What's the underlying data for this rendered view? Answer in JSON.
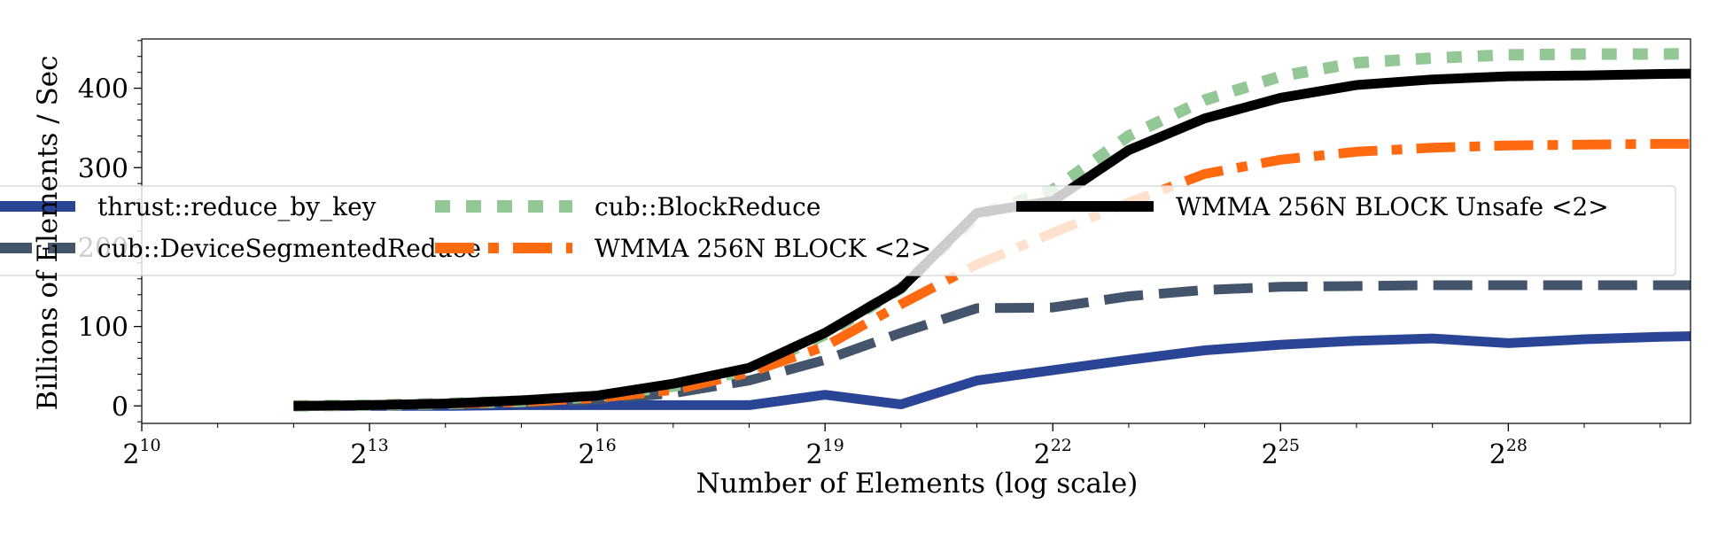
{
  "chart_data": {
    "type": "line",
    "xlabel": "Number of Elements (log scale)",
    "ylabel": "Billions of Elements / Sec",
    "x_scale": "log2",
    "x_unit": "log2 of number of elements",
    "xlim": [
      10,
      30.4
    ],
    "ylim": [
      -22,
      462
    ],
    "x_ticks": [
      10,
      13,
      16,
      19,
      22,
      25,
      28
    ],
    "x_tick_base": "2",
    "x_tick_exponents": [
      "10",
      "13",
      "16",
      "19",
      "22",
      "25",
      "28"
    ],
    "y_ticks": [
      0,
      100,
      200,
      300,
      400
    ],
    "y_tick_labels": [
      "0",
      "100",
      "200",
      "300",
      "400"
    ],
    "x": [
      12,
      13,
      14,
      15,
      16,
      17,
      18,
      19,
      20,
      21,
      22,
      23,
      24,
      25,
      26,
      27,
      28,
      29,
      30,
      31
    ],
    "grid": false,
    "legend": {
      "placement": "center",
      "columns": 3,
      "frame": true
    },
    "series": [
      {
        "name": "thrust::reduce_by_key",
        "color": "#2b4596",
        "style": "solid",
        "z": 1,
        "values": [
          0,
          0,
          0,
          1,
          1,
          1,
          1,
          14,
          2,
          32,
          45,
          58,
          70,
          77,
          82,
          85,
          79,
          84,
          87,
          89
        ]
      },
      {
        "name": "cub::DeviceSegmentedReduce",
        "color": "#44546a",
        "style": "dashed",
        "z": 2,
        "values": [
          0,
          1,
          2,
          4,
          8,
          16,
          32,
          58,
          92,
          123,
          124,
          138,
          146,
          150,
          151,
          152,
          152,
          152,
          152,
          152
        ]
      },
      {
        "name": "cub::BlockReduce",
        "color": "#93c796",
        "style": "dotted",
        "z": 3,
        "values": [
          0,
          1,
          3,
          6,
          12,
          25,
          45,
          90,
          148,
          240,
          272,
          340,
          385,
          415,
          432,
          438,
          442,
          443,
          443,
          444
        ]
      },
      {
        "name": "WMMA 256N BLOCK <2>",
        "color": "#ff6a10",
        "style": "dashdot",
        "z": 4,
        "values": [
          0,
          1,
          3,
          5,
          10,
          20,
          42,
          75,
          128,
          178,
          218,
          256,
          292,
          310,
          320,
          325,
          328,
          329,
          330,
          330
        ]
      },
      {
        "name": "WMMA 256N BLOCK Unsafe <2>",
        "color": "#000000",
        "style": "solid",
        "z": 5,
        "values": [
          0,
          1,
          3,
          7,
          13,
          28,
          48,
          92,
          148,
          243,
          258,
          322,
          362,
          388,
          404,
          411,
          415,
          416,
          418,
          419
        ]
      }
    ]
  }
}
